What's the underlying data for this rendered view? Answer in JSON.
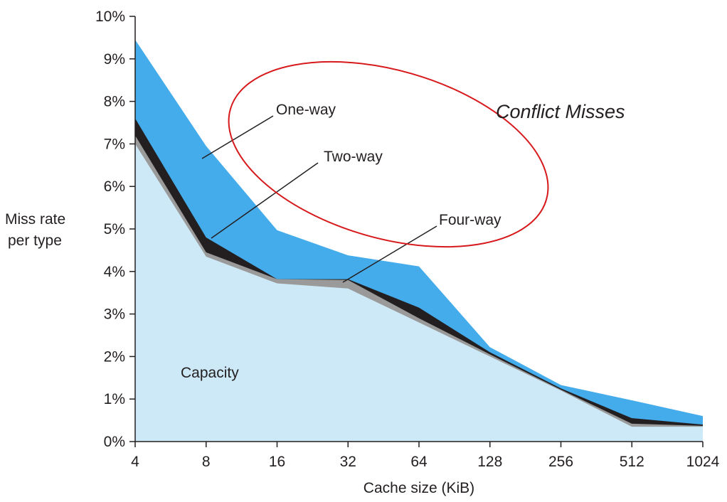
{
  "chart_data": {
    "type": "area",
    "categories": [
      "4",
      "8",
      "16",
      "32",
      "64",
      "128",
      "256",
      "512",
      "1024"
    ],
    "xlabel": "Cache size (KiB)",
    "ylabel": [
      "Miss rate",
      "per type"
    ],
    "ylim": [
      0,
      10
    ],
    "yticks": [
      "0%",
      "1%",
      "2%",
      "3%",
      "4%",
      "5%",
      "6%",
      "7%",
      "8%",
      "9%",
      "10%"
    ],
    "grid": false,
    "series": [
      {
        "name": "Capacity",
        "values": [
          7.0,
          4.35,
          3.72,
          3.6,
          2.8,
          2.0,
          1.2,
          0.35,
          0.35
        ],
        "color": "#cde9f7"
      },
      {
        "name": "Four-way",
        "values": [
          7.2,
          4.45,
          3.82,
          3.8,
          2.9,
          2.05,
          1.22,
          0.42,
          0.37
        ],
        "color": "#9a9a9a"
      },
      {
        "name": "Two-way",
        "values": [
          7.6,
          4.8,
          3.82,
          3.82,
          3.15,
          2.1,
          1.25,
          0.55,
          0.4
        ],
        "color": "#231f20"
      },
      {
        "name": "One-way",
        "values": [
          9.45,
          6.95,
          4.97,
          4.38,
          4.12,
          2.22,
          1.33,
          0.97,
          0.6
        ],
        "color": "#45acec"
      }
    ],
    "annotations": {
      "highlight": "Conflict Misses",
      "highlight_color": "#d7191c"
    }
  }
}
